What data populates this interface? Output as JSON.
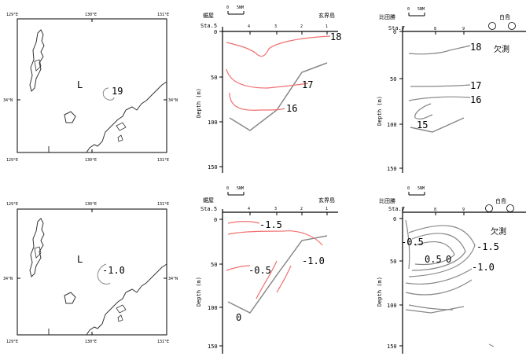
{
  "colors": {
    "red_contour": "#f07070",
    "gray_contour": "#888888",
    "coast": "#333333"
  },
  "maps": {
    "top": {
      "lon_labels": [
        "129°E",
        "130°E",
        "131°E"
      ],
      "lat_label_left": "34°N",
      "lat_label_right": "34°N",
      "low_label": "L",
      "contour_value": "19"
    },
    "bottom": {
      "lon_labels": [
        "129°E",
        "130°E",
        "131°E"
      ],
      "lat_label_left": "34°N",
      "lat_label_right": "34°N",
      "low_label": "L",
      "contour_value": "-1.0"
    }
  },
  "sections": {
    "middle": {
      "scale_zero": "0",
      "scale_nm": "5NM",
      "left_place": "鋸屋",
      "right_place": "玄界島",
      "station_prefix": "Sta.5",
      "station_labels": [
        "4",
        "3",
        "2",
        "1"
      ],
      "depth_ticks": [
        "0",
        "50",
        "100",
        "150"
      ],
      "ylabel": "Depth (m)"
    },
    "right": {
      "scale_zero": "0",
      "scale_nm": "5NM",
      "left_place": "比田勝",
      "right_place": "白島",
      "station_prefix": "Sta.7",
      "station_labels": [
        "8",
        "9"
      ],
      "depth_ticks": [
        "0",
        "50",
        "100",
        "150"
      ],
      "ylabel": "Depth (m)",
      "missing_label": "欠測"
    }
  },
  "contour_labels": {
    "top_middle": [
      "18",
      "17",
      "16"
    ],
    "top_right": [
      "18",
      "17",
      "16",
      "15"
    ],
    "bottom_middle": [
      "-1.5",
      "-1.0",
      "-0.5",
      "0"
    ],
    "bottom_right": [
      "-0.5",
      "-1.5",
      "0.5",
      "0",
      "-1.0"
    ]
  }
}
